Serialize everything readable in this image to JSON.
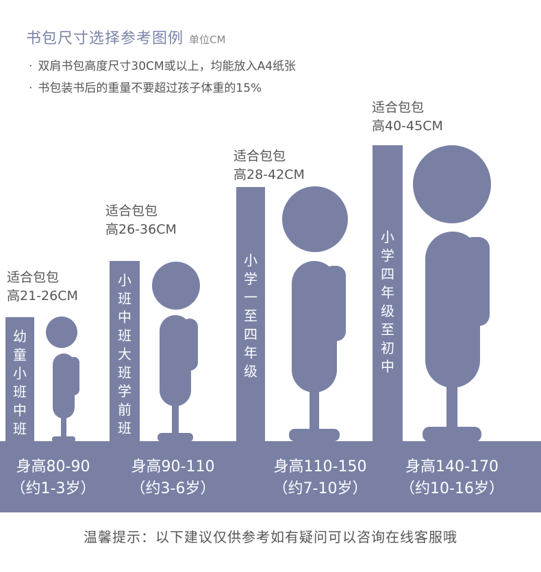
{
  "header": {
    "title": "书包尺寸选择参考图例",
    "unit": "单位CM",
    "notes": [
      "双肩书包高度尺寸30CM或以上，均能放入A4纸张",
      "书包装书后的重量不要超过孩子体重的15%"
    ],
    "bullet": "·"
  },
  "columns": [
    {
      "fit_title": "适合包包",
      "bag_height": "高21-26CM",
      "grades": "幼童小班中班",
      "body_height": "身高80-90",
      "age": "（约1-3岁）"
    },
    {
      "fit_title": "适合包包",
      "bag_height": "高26-36CM",
      "grades": "小班中班大班学前班",
      "body_height": "身高90-110",
      "age": "（约3-6岁）"
    },
    {
      "fit_title": "适合包包",
      "bag_height": "高28-42CM",
      "grades": "小学一至四年级",
      "body_height": "身高110-150",
      "age": "（约7-10岁）"
    },
    {
      "fit_title": "适合包包",
      "bag_height": "高40-45CM",
      "grades": "小学四年级至初中",
      "body_height": "身高140-170",
      "age": "（约10-16岁）"
    }
  ],
  "footer": {
    "tip": "温馨提示：以下建议仅供参考如有疑问可以咨询在线客服哦"
  },
  "colors": {
    "accent": "#7980a4",
    "title": "#7a84a8",
    "text": "#555555"
  }
}
